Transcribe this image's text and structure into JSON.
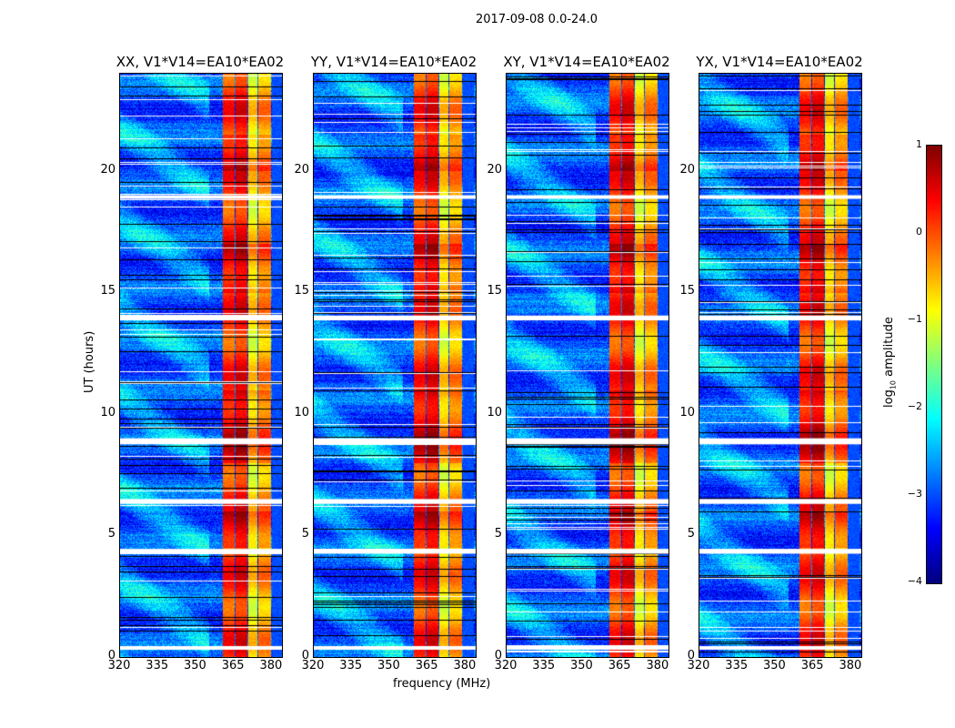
{
  "suptitle": "2017-09-08 0.0-24.0",
  "chart_data": {
    "type": "heatmap",
    "xlabel": "frequency (MHz)",
    "ylabel": "UT (hours)",
    "xlim": [
      320,
      384
    ],
    "ylim": [
      0,
      24
    ],
    "xticks": [
      "320",
      "335",
      "350",
      "365",
      "380"
    ],
    "xtick_values": [
      320,
      335,
      350,
      365,
      380
    ],
    "yticks": [
      "0",
      "5",
      "10",
      "15",
      "20"
    ],
    "ytick_values": [
      0,
      5,
      10,
      15,
      20
    ],
    "panels": [
      {
        "title": "XX, V1*V14=EA10*EA02"
      },
      {
        "title": "YY, V1*V14=EA10*EA02"
      },
      {
        "title": "XY, V1*V14=EA10*EA02"
      },
      {
        "title": "YX, V1*V14=EA10*EA02"
      }
    ],
    "bands_mhz": [
      {
        "range": [
          360.5,
          365.2
        ],
        "level": 0.1
      },
      {
        "range": [
          365.5,
          370.0
        ],
        "level": 0.3
      },
      {
        "range": [
          370.4,
          374.0
        ],
        "level": -0.8
      },
      {
        "range": [
          374.4,
          379.5
        ],
        "level": -0.4
      },
      {
        "range": [
          379.8,
          384
        ],
        "level": -3.0
      }
    ],
    "background_level": -3.0,
    "data_gaps_hours": [
      [
        18.85,
        19.0
      ],
      [
        13.85,
        14.05
      ],
      [
        8.75,
        9.0
      ],
      [
        6.3,
        6.5
      ],
      [
        4.25,
        4.45
      ],
      [
        0.3,
        0.45
      ]
    ],
    "colorbar": {
      "label": "log10 amplitude",
      "label_main": "log",
      "label_sub": "10",
      "label_rest": " amplitude",
      "ticks": [
        "1",
        "0",
        "−1",
        "−2",
        "−3",
        "−4"
      ],
      "tick_values": [
        1,
        0,
        -1,
        -2,
        -3,
        -4
      ],
      "range": [
        -4,
        1
      ],
      "colormap": "jet"
    }
  }
}
